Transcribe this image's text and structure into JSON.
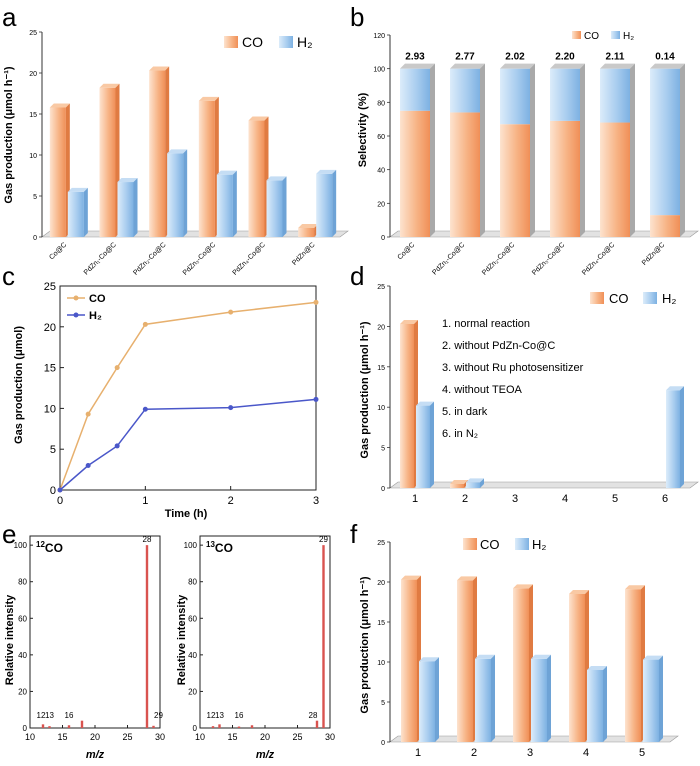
{
  "colors": {
    "co": "#f5a36f",
    "co_light": "#fde3cf",
    "h2": "#8fbfe9",
    "h2_light": "#dcecfa",
    "line_co": "#e7b06e",
    "line_h2": "#4a57c9",
    "ms_red": "#d9534f",
    "axis": "#222222"
  },
  "chart_data": [
    {
      "panel": "a",
      "type": "bar",
      "categories": [
        "Co@C",
        "PdZn₁-Co@C",
        "PdZn₂-Co@C",
        "PdZn₃-Co@C",
        "PdZn₄-Co@C",
        "PdZn@C"
      ],
      "series": [
        {
          "name": "CO",
          "values": [
            15.8,
            18.2,
            20.3,
            16.6,
            14.2,
            1.1
          ]
        },
        {
          "name": "H₂",
          "values": [
            5.5,
            6.7,
            10.2,
            7.6,
            6.9,
            7.7
          ]
        }
      ],
      "ylabel": "Gas production (μmol h⁻¹)",
      "yticks": [
        "0",
        "5",
        "10",
        "15",
        "20",
        "25"
      ],
      "ylim": [
        0,
        25
      ],
      "legend": "top-right"
    },
    {
      "panel": "b",
      "type": "bar",
      "stacked": true,
      "categories": [
        "Co@C",
        "PdZn₁-Co@C",
        "PdZn₂-Co@C",
        "PdZn₃-Co@C",
        "PdZn₄-Co@C",
        "PdZn@C"
      ],
      "series": [
        {
          "name": "CO",
          "values": [
            75,
            74,
            67,
            69,
            68,
            13
          ]
        },
        {
          "name": "H₂",
          "values": [
            25,
            26,
            33,
            31,
            32,
            87
          ]
        }
      ],
      "ratio_labels": [
        "2.93",
        "2.77",
        "2.02",
        "2.20",
        "2.11",
        "0.14"
      ],
      "ylabel": "Selectivity (%)",
      "yticks": [
        "0",
        "20",
        "40",
        "60",
        "80",
        "100",
        "120"
      ],
      "ylim": [
        0,
        120
      ],
      "legend": "top-right"
    },
    {
      "panel": "c",
      "type": "line",
      "x": [
        0,
        0.33,
        0.67,
        1,
        2,
        3
      ],
      "series": [
        {
          "name": "CO",
          "values": [
            0,
            9.3,
            15.0,
            20.3,
            21.8,
            23.0
          ]
        },
        {
          "name": "H₂",
          "values": [
            0,
            3.0,
            5.4,
            9.9,
            10.1,
            11.1
          ]
        }
      ],
      "xlabel": "Time (h)",
      "ylabel": "Gas production (μmol)",
      "xticks": [
        "0",
        "1",
        "2",
        "3"
      ],
      "yticks": [
        "0",
        "5",
        "10",
        "15",
        "20",
        "25"
      ],
      "xlim": [
        0,
        3
      ],
      "ylim": [
        0,
        25
      ],
      "legend": "top-left"
    },
    {
      "panel": "d",
      "type": "bar",
      "categories": [
        "1",
        "2",
        "3",
        "4",
        "5",
        "6"
      ],
      "series": [
        {
          "name": "CO",
          "values": [
            20.3,
            0.5,
            0,
            0,
            0,
            0
          ]
        },
        {
          "name": "H₂",
          "values": [
            10.2,
            0.7,
            0,
            0,
            0,
            12.1
          ]
        }
      ],
      "conditions": [
        "1. normal reaction",
        "2. without PdZn-Co@C",
        "3. without Ru photosensitizer",
        "4. without TEOA",
        "5. in dark",
        "6. in N₂"
      ],
      "ylabel": "Gas production (μmol h⁻¹)",
      "yticks": [
        "0",
        "5",
        "10",
        "15",
        "20",
        "25"
      ],
      "ylim": [
        0,
        25
      ],
      "legend": "top-right"
    },
    {
      "panel": "e",
      "type": "bar",
      "subtype": "mass-spectrum",
      "spectra": [
        {
          "label_mass": "12",
          "label_species": "CO",
          "peaks": [
            {
              "mz": 12,
              "i": 2
            },
            {
              "mz": 13,
              "i": 1
            },
            {
              "mz": 16,
              "i": 1.5
            },
            {
              "mz": 18,
              "i": 4
            },
            {
              "mz": 28,
              "i": 100
            },
            {
              "mz": 29,
              "i": 1.2
            }
          ],
          "peak_labels": [
            {
              "mz": 12,
              "t": "12"
            },
            {
              "mz": 13,
              "t": "13"
            },
            {
              "mz": 16,
              "t": "16"
            },
            {
              "mz": 28,
              "t": "28"
            },
            {
              "mz": 29,
              "t": "29"
            }
          ]
        },
        {
          "label_mass": "13",
          "label_species": "CO",
          "peaks": [
            {
              "mz": 12,
              "i": 1
            },
            {
              "mz": 13,
              "i": 2
            },
            {
              "mz": 16,
              "i": 0.8
            },
            {
              "mz": 18,
              "i": 1.5
            },
            {
              "mz": 28,
              "i": 4
            },
            {
              "mz": 29,
              "i": 100
            }
          ],
          "peak_labels": [
            {
              "mz": 12,
              "t": "12"
            },
            {
              "mz": 13,
              "t": "13"
            },
            {
              "mz": 16,
              "t": "16"
            },
            {
              "mz": 28,
              "t": "28"
            },
            {
              "mz": 29,
              "t": "29"
            }
          ]
        }
      ],
      "xlabel": "m/z",
      "ylabel": "Relative intensity",
      "xticks": [
        "10",
        "15",
        "20",
        "25",
        "30"
      ],
      "yticks": [
        "0",
        "20",
        "40",
        "60",
        "80",
        "100"
      ],
      "xlim": [
        10,
        30
      ],
      "ylim": [
        0,
        105
      ]
    },
    {
      "panel": "f",
      "type": "bar",
      "categories": [
        "1",
        "2",
        "3",
        "4",
        "5"
      ],
      "series": [
        {
          "name": "CO",
          "values": [
            20.3,
            20.2,
            19.2,
            18.5,
            19.1
          ]
        },
        {
          "name": "H₂",
          "values": [
            10.1,
            10.4,
            10.4,
            9.0,
            10.3
          ]
        }
      ],
      "ylabel": "Gas production (μmol h⁻¹)",
      "yticks": [
        "0",
        "5",
        "10",
        "15",
        "20",
        "25"
      ],
      "ylim": [
        0,
        25
      ],
      "legend": "top-right"
    }
  ],
  "panel_letters": [
    "a",
    "b",
    "c",
    "d",
    "e",
    "f"
  ]
}
